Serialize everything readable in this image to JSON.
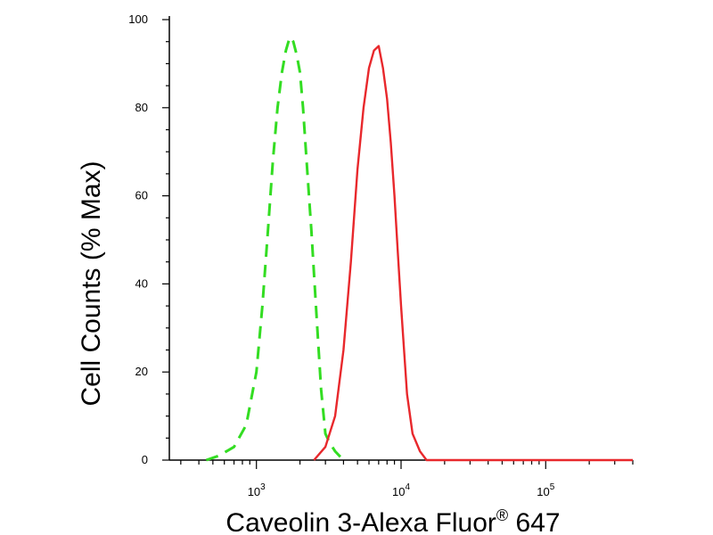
{
  "chart_data": {
    "type": "line",
    "title": "",
    "xlabel": "Caveolin 3-Alexa Fluor® 647",
    "xlabel_main": "Caveolin 3-Alexa Fluor",
    "xlabel_sup": "®",
    "xlabel_tail": " 647",
    "ylabel": "Cell Counts (% Max)",
    "x_scale": "log",
    "xlim": [
      250,
      400000
    ],
    "ylim": [
      0,
      100
    ],
    "x_ticks": [
      {
        "base": "10",
        "exp": "3",
        "value": 1000
      },
      {
        "base": "10",
        "exp": "4",
        "value": 10000
      },
      {
        "base": "10",
        "exp": "5",
        "value": 100000
      }
    ],
    "y_ticks": [
      {
        "label": "0",
        "value": 0
      },
      {
        "label": "20",
        "value": 20
      },
      {
        "label": "40",
        "value": 40
      },
      {
        "label": "60",
        "value": 60
      },
      {
        "label": "80",
        "value": 80
      },
      {
        "label": "100",
        "value": 100
      }
    ],
    "grid": false,
    "legend": "none",
    "series": [
      {
        "color": "#33dd22",
        "style": "dashed",
        "points": [
          [
            450,
            0
          ],
          [
            550,
            1
          ],
          [
            700,
            3
          ],
          [
            850,
            8
          ],
          [
            1000,
            20
          ],
          [
            1100,
            35
          ],
          [
            1200,
            52
          ],
          [
            1300,
            68
          ],
          [
            1400,
            80
          ],
          [
            1500,
            88
          ],
          [
            1600,
            93
          ],
          [
            1700,
            96
          ],
          [
            1800,
            95
          ],
          [
            1900,
            92
          ],
          [
            2000,
            88
          ],
          [
            2100,
            80
          ],
          [
            2200,
            70
          ],
          [
            2400,
            52
          ],
          [
            2600,
            33
          ],
          [
            2800,
            16
          ],
          [
            3000,
            6
          ],
          [
            3200,
            4
          ],
          [
            3500,
            2
          ],
          [
            4000,
            0
          ]
        ]
      },
      {
        "color": "#e8282c",
        "style": "solid",
        "points": [
          [
            2500,
            0
          ],
          [
            3000,
            3
          ],
          [
            3500,
            10
          ],
          [
            4000,
            25
          ],
          [
            4500,
            45
          ],
          [
            5000,
            66
          ],
          [
            5500,
            80
          ],
          [
            6000,
            89
          ],
          [
            6500,
            93
          ],
          [
            7000,
            94
          ],
          [
            7500,
            89
          ],
          [
            8000,
            82
          ],
          [
            8500,
            72
          ],
          [
            9000,
            60
          ],
          [
            9500,
            47
          ],
          [
            10000,
            35
          ],
          [
            11000,
            15
          ],
          [
            12000,
            6
          ],
          [
            13500,
            2
          ],
          [
            15000,
            0
          ],
          [
            50000,
            0
          ],
          [
            400000,
            0
          ]
        ]
      }
    ]
  }
}
